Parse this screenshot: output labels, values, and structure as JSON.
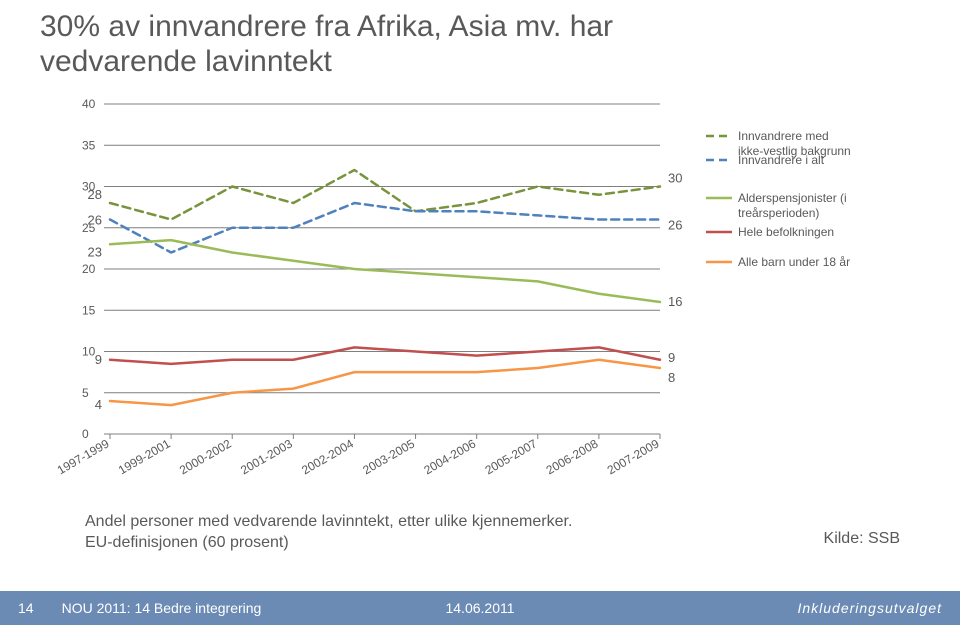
{
  "title_l1": "30% av innvandrere fra Afrika, Asia mv. har",
  "title_l2": "vedvarende lavinntekt",
  "caption_l1": "Andel personer med vedvarende lavinntekt, etter ulike kjennemerker.",
  "caption_l2": "EU-definisjonen (60 prosent)",
  "source": "Kilde: SSB",
  "footer_left_num": "14",
  "footer_left_text": "NOU 2011: 14 Bedre integrering",
  "footer_center": "14.06.2011",
  "footer_right": "Inkluderingsutvalget",
  "chart": {
    "type": "line",
    "ylim": [
      0,
      40
    ],
    "ytick_step": 5,
    "yticks": [
      "0",
      "5",
      "10",
      "15",
      "20",
      "25",
      "30",
      "35",
      "40"
    ],
    "xcats": [
      "1997-1999",
      "1999-2001",
      "2000-2002",
      "2001-2003",
      "2002-2004",
      "2003-2005",
      "2004-2006",
      "2005-2007",
      "2006-2008",
      "2007-2009"
    ],
    "grid_color": "#7f7f7f",
    "axis_font_size": 12,
    "axis_color": "#595959",
    "start_labels": {
      "s0": "28",
      "s1": "26",
      "s2": "23",
      "s3": "9",
      "s4": "4"
    },
    "end_labels": {
      "s0": "30",
      "s1": "26",
      "s2": "16",
      "s3": "9",
      "s4": "8"
    },
    "legend": [
      {
        "label": "Innvandrere med ikke-vestlig bakgrunn",
        "color": "#77933c",
        "dash": "8,5",
        "width": 2.5
      },
      {
        "label": "Innvandrere i alt",
        "color": "#4f81bd",
        "dash": "8,5",
        "width": 2.5
      },
      {
        "label": "Alderspensjonister (i treårsperioden)",
        "color": "#9bbb59",
        "dash": "",
        "width": 2.5
      },
      {
        "label": "Hele befolkningen",
        "color": "#c0504d",
        "dash": "",
        "width": 2.5
      },
      {
        "label": "Alle barn under 18 år",
        "color": "#f79646",
        "dash": "",
        "width": 2.5
      }
    ],
    "series": [
      {
        "id": "s0",
        "color": "#77933c",
        "dash": "8,5",
        "width": 2.5,
        "data": [
          28,
          26,
          30,
          28,
          32,
          27,
          28,
          30,
          29,
          30
        ]
      },
      {
        "id": "s1",
        "color": "#4f81bd",
        "dash": "8,5",
        "width": 2.5,
        "data": [
          26,
          22,
          25,
          25,
          28,
          27,
          27,
          26.5,
          26,
          26
        ]
      },
      {
        "id": "s2",
        "color": "#9bbb59",
        "dash": "",
        "width": 2.5,
        "data": [
          23,
          23.5,
          22,
          21,
          20,
          19.5,
          19,
          18.5,
          17,
          16
        ]
      },
      {
        "id": "s3",
        "color": "#c0504d",
        "dash": "",
        "width": 2.5,
        "data": [
          9,
          8.5,
          9,
          9,
          10.5,
          10,
          9.5,
          10,
          10.5,
          9
        ]
      },
      {
        "id": "s4",
        "color": "#f79646",
        "dash": "",
        "width": 2.5,
        "data": [
          4,
          3.5,
          5,
          5.5,
          7.5,
          7.5,
          7.5,
          8,
          9,
          8
        ]
      }
    ]
  }
}
